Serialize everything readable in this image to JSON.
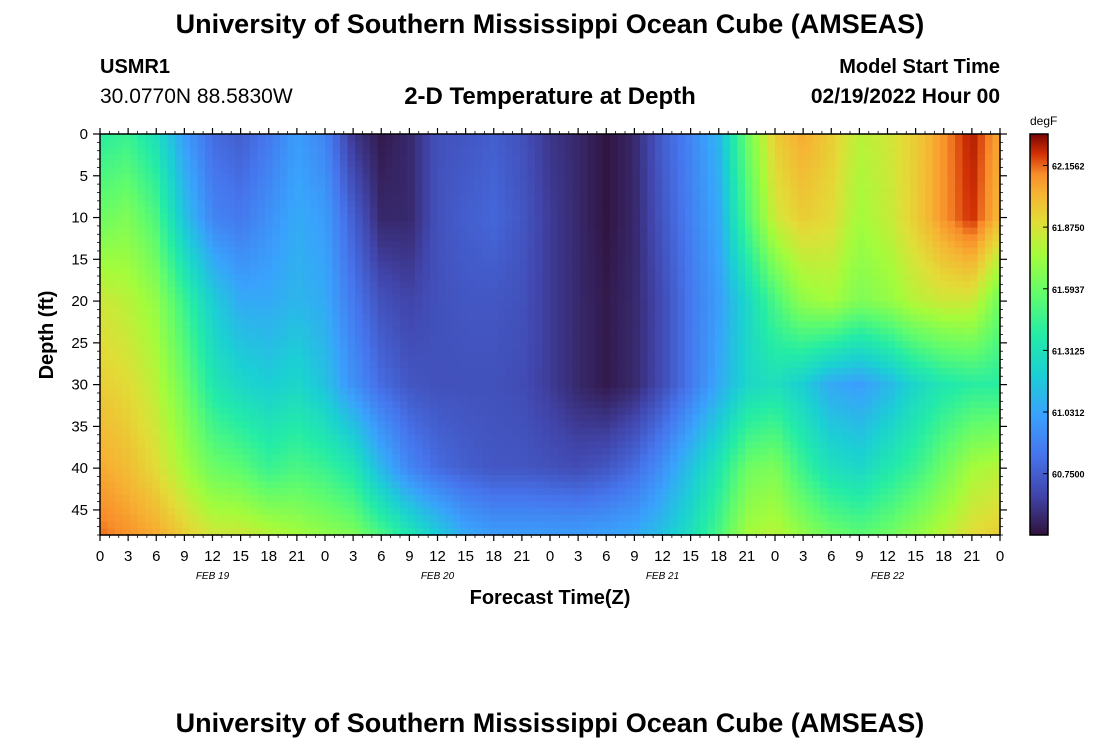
{
  "page": {
    "title": "University of Southern Mississippi Ocean Cube (AMSEAS)",
    "station": "USMR1",
    "coords": "30.0770N  88.5830W",
    "subtitle": "2-D Temperature at Depth",
    "model_start_label": "Model Start Time",
    "model_start_value": "02/19/2022 Hour 00",
    "bottom_title": "University of Southern Mississippi Ocean Cube (AMSEAS)"
  },
  "chart_data": {
    "type": "heatmap",
    "title": "2-D Temperature at Depth",
    "xlabel": "Forecast Time(Z)",
    "ylabel": "Depth (ft)",
    "x_ticks": [
      "0",
      "3",
      "6",
      "9",
      "12",
      "15",
      "18",
      "21",
      "0",
      "3",
      "6",
      "9",
      "12",
      "15",
      "18",
      "21",
      "0",
      "3",
      "6",
      "9",
      "12",
      "15",
      "18",
      "21",
      "0",
      "3",
      "6",
      "9",
      "12",
      "15",
      "18",
      "21",
      "0"
    ],
    "x_range_hours": [
      0,
      96
    ],
    "day_labels": [
      {
        "label": "FEB 19",
        "hour": 12
      },
      {
        "label": "FEB 20",
        "hour": 36
      },
      {
        "label": "FEB 21",
        "hour": 60
      },
      {
        "label": "FEB 22",
        "hour": 84
      }
    ],
    "y_ticks": [
      0,
      5,
      10,
      15,
      20,
      25,
      30,
      35,
      40,
      45
    ],
    "y_range_ft": [
      0,
      48
    ],
    "colorbar": {
      "units": "degF",
      "labels": [
        "62.1562",
        "61.8750",
        "61.5937",
        "61.3125",
        "61.0312",
        "60.7500"
      ],
      "range": [
        60.47,
        62.3
      ]
    },
    "temperature_hours": [
      0,
      3,
      6,
      9,
      12,
      15,
      18,
      21,
      24,
      27,
      30,
      33,
      36,
      39,
      42,
      45,
      48,
      51,
      54,
      57,
      60,
      63,
      66,
      69,
      72,
      75,
      78,
      81,
      84,
      87,
      90,
      93,
      96
    ],
    "temperature_depths_ft": [
      0,
      10,
      20,
      30,
      40,
      48
    ],
    "temperature_degF": [
      [
        61.4,
        61.45,
        61.3,
        61.0,
        60.8,
        60.75,
        60.85,
        61.0,
        60.9,
        60.6,
        60.5,
        60.55,
        60.7,
        60.72,
        60.75,
        60.7,
        60.6,
        60.55,
        60.48,
        60.55,
        60.75,
        60.9,
        61.1,
        61.6,
        61.95,
        62.05,
        61.95,
        61.8,
        61.85,
        61.95,
        62.1,
        62.25,
        62.05
      ],
      [
        61.6,
        61.65,
        61.5,
        61.15,
        60.9,
        60.85,
        60.95,
        61.05,
        61.0,
        60.75,
        60.55,
        60.55,
        60.7,
        60.75,
        60.78,
        60.72,
        60.62,
        60.55,
        60.48,
        60.55,
        60.72,
        60.88,
        61.05,
        61.5,
        61.85,
        61.95,
        61.9,
        61.75,
        61.82,
        61.95,
        62.1,
        62.22,
        62.0
      ],
      [
        61.85,
        61.8,
        61.7,
        61.45,
        61.2,
        61.05,
        61.05,
        61.1,
        61.05,
        60.85,
        60.7,
        60.65,
        60.7,
        60.72,
        60.72,
        60.7,
        60.62,
        60.55,
        60.5,
        60.55,
        60.68,
        60.85,
        61.0,
        61.25,
        61.5,
        61.7,
        61.75,
        61.65,
        61.7,
        61.8,
        61.85,
        61.85,
        61.6
      ],
      [
        61.95,
        61.9,
        61.8,
        61.6,
        61.35,
        61.25,
        61.2,
        61.25,
        61.15,
        60.95,
        60.8,
        60.72,
        60.7,
        60.7,
        60.7,
        60.68,
        60.62,
        60.55,
        60.5,
        60.55,
        60.68,
        60.85,
        61.05,
        61.25,
        61.3,
        61.2,
        61.05,
        61.0,
        61.1,
        61.25,
        61.35,
        61.4,
        61.4
      ],
      [
        62.05,
        62.0,
        61.9,
        61.75,
        61.6,
        61.55,
        61.45,
        61.5,
        61.45,
        61.35,
        61.1,
        60.9,
        60.8,
        60.75,
        60.72,
        60.72,
        60.7,
        60.68,
        60.72,
        60.8,
        60.95,
        61.15,
        61.35,
        61.6,
        61.65,
        61.45,
        61.3,
        61.25,
        61.35,
        61.45,
        61.6,
        61.75,
        61.8
      ],
      [
        62.15,
        62.1,
        62.05,
        61.95,
        61.85,
        61.85,
        61.8,
        61.75,
        61.7,
        61.65,
        61.5,
        61.35,
        61.2,
        61.05,
        61.0,
        61.0,
        61.0,
        61.0,
        61.02,
        61.05,
        61.15,
        61.3,
        61.5,
        61.75,
        61.8,
        61.7,
        61.6,
        61.55,
        61.6,
        61.7,
        61.8,
        61.9,
        61.95
      ]
    ]
  }
}
